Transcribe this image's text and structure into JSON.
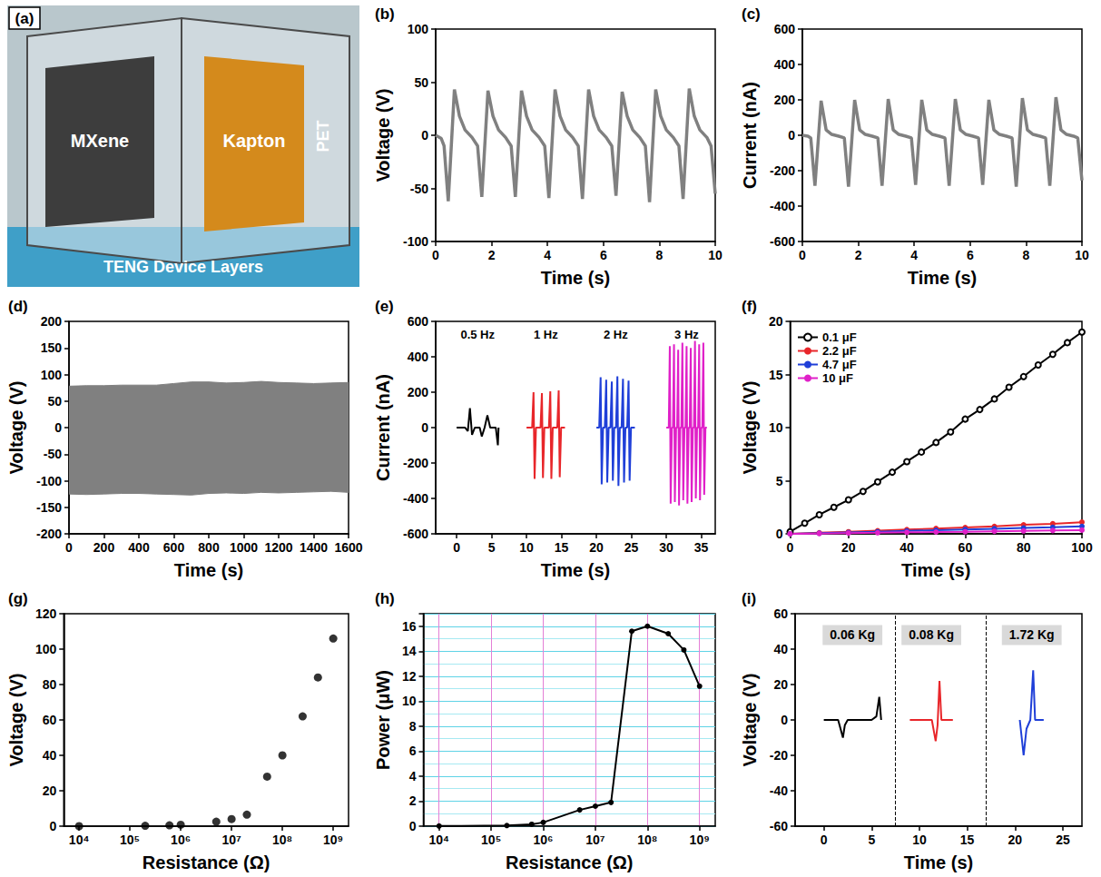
{
  "photo": {
    "label": "(a)",
    "layers": [
      "MXene",
      "Kapton",
      "PET"
    ],
    "caption": "TENG Device Layers"
  },
  "chart_data": [
    {
      "label": "(b)",
      "type": "line",
      "xlabel": "Time (s)",
      "ylabel": "Voltage (V)",
      "xlim": [
        0,
        10
      ],
      "xticks": [
        0,
        2,
        4,
        6,
        8,
        10
      ],
      "ylim": [
        -100,
        100
      ],
      "yticks": [
        -100,
        -50,
        0,
        50,
        100
      ],
      "x": [
        0,
        0.2,
        0.3,
        0.45,
        0.67,
        0.85,
        1.05,
        1.3,
        1.5,
        1.65,
        1.87,
        2.05,
        2.25,
        2.5,
        2.7,
        2.85,
        3.07,
        3.25,
        3.45,
        3.7,
        3.9,
        4.05,
        4.27,
        4.45,
        4.65,
        4.9,
        5.1,
        5.25,
        5.47,
        5.65,
        5.85,
        6.1,
        6.3,
        6.45,
        6.67,
        6.85,
        7.05,
        7.3,
        7.5,
        7.65,
        7.87,
        8.05,
        8.25,
        8.5,
        8.7,
        8.85,
        9.07,
        9.25,
        9.45,
        9.7,
        9.85,
        10
      ],
      "series": [
        {
          "color": "#808080",
          "values": [
            0,
            -3,
            -10,
            -62,
            43,
            18,
            5,
            -2,
            -10,
            -58,
            42,
            18,
            5,
            -2,
            -10,
            -58,
            42,
            18,
            5,
            -2,
            -10,
            -59,
            43,
            18,
            5,
            -2,
            -10,
            -60,
            43,
            18,
            5,
            -2,
            -10,
            -57,
            41,
            18,
            5,
            -2,
            -10,
            -63,
            43,
            18,
            5,
            -2,
            -10,
            -60,
            44,
            18,
            5,
            -2,
            -10,
            -55
          ]
        }
      ]
    },
    {
      "label": "(c)",
      "type": "line",
      "xlabel": "Time (s)",
      "ylabel": "Current (nA)",
      "xlim": [
        0,
        10
      ],
      "xticks": [
        0,
        2,
        4,
        6,
        8,
        10
      ],
      "ylim": [
        -600,
        600
      ],
      "yticks": [
        -600,
        -400,
        -200,
        0,
        200,
        400,
        600
      ],
      "x": [
        0,
        0.2,
        0.3,
        0.45,
        0.67,
        0.85,
        1.05,
        1.3,
        1.5,
        1.65,
        1.87,
        2.05,
        2.25,
        2.5,
        2.7,
        2.85,
        3.07,
        3.25,
        3.45,
        3.7,
        3.9,
        4.05,
        4.27,
        4.45,
        4.65,
        4.9,
        5.1,
        5.25,
        5.47,
        5.65,
        5.85,
        6.1,
        6.3,
        6.45,
        6.67,
        6.85,
        7.05,
        7.3,
        7.5,
        7.65,
        7.87,
        8.05,
        8.25,
        8.5,
        8.7,
        8.85,
        9.07,
        9.25,
        9.45,
        9.7,
        9.85,
        10
      ],
      "series": [
        {
          "color": "#808080",
          "values": [
            0,
            -5,
            -15,
            -285,
            195,
            30,
            5,
            -5,
            -15,
            -290,
            200,
            30,
            5,
            -5,
            -15,
            -285,
            205,
            30,
            5,
            -5,
            -15,
            -280,
            200,
            30,
            5,
            -5,
            -15,
            -285,
            205,
            30,
            5,
            -5,
            -15,
            -280,
            200,
            30,
            5,
            -5,
            -15,
            -290,
            210,
            30,
            5,
            -5,
            -15,
            -285,
            215,
            30,
            5,
            -5,
            -15,
            -255
          ]
        }
      ]
    },
    {
      "label": "(d)",
      "type": "area",
      "xlabel": "Time (s)",
      "ylabel": "Voltage (V)",
      "xlim": [
        0,
        1600
      ],
      "xticks": [
        0,
        200,
        400,
        600,
        800,
        1000,
        1200,
        1400,
        1600
      ],
      "ylim": [
        -200,
        200
      ],
      "yticks": [
        -200,
        -150,
        -100,
        -50,
        0,
        50,
        100,
        150,
        200
      ],
      "x": [
        0,
        100,
        200,
        300,
        400,
        500,
        600,
        700,
        800,
        900,
        1000,
        1100,
        1200,
        1300,
        1400,
        1500,
        1600
      ],
      "series": [
        {
          "color": "#808080",
          "values": [
            78,
            79,
            79,
            80,
            80,
            80,
            83,
            86,
            86,
            84,
            85,
            87,
            85,
            84,
            83,
            84,
            85
          ]
        },
        {
          "color": "#808080",
          "values": [
            -125,
            -126,
            -125,
            -124,
            -124,
            -125,
            -126,
            -127,
            -124,
            -123,
            -124,
            -122,
            -123,
            -122,
            -121,
            -120,
            -122
          ]
        }
      ]
    },
    {
      "label": "(e)",
      "type": "line",
      "xlabel": "Time (s)",
      "ylabel": "Current (nA)",
      "xlim": [
        -3,
        37
      ],
      "xticks": [
        0,
        5,
        10,
        15,
        20,
        25,
        30,
        35
      ],
      "ylim": [
        -600,
        600
      ],
      "yticks": [
        -600,
        -400,
        -200,
        0,
        200,
        400,
        600
      ],
      "series": [
        {
          "annotation": "0.5 Hz",
          "color": "#000000",
          "x": [
            0,
            1.2,
            1.6,
            1.9,
            2.2,
            2.6,
            3.3,
            3.6,
            4.0,
            4.4,
            4.8,
            5.6,
            5.9,
            6.0
          ],
          "values": [
            0,
            0,
            -20,
            110,
            -40,
            0,
            0,
            -50,
            0,
            70,
            0,
            0,
            -100,
            0
          ]
        },
        {
          "annotation": "1 Hz",
          "color": "#e8262a",
          "x": [
            10,
            10.8,
            11.0,
            11.15,
            11.35,
            12.0,
            12.2,
            12.35,
            12.55,
            13.2,
            13.4,
            13.55,
            13.75,
            14.4,
            14.6,
            14.75,
            14.95,
            15.5
          ],
          "values": [
            0,
            0,
            200,
            -290,
            0,
            0,
            195,
            -285,
            0,
            0,
            205,
            -290,
            0,
            0,
            210,
            -280,
            0,
            0
          ]
        },
        {
          "annotation": "2 Hz",
          "color": "#1f3fd8",
          "x": [
            20,
            20.4,
            20.6,
            20.75,
            20.95,
            21.2,
            21.4,
            21.55,
            21.75,
            22.0,
            22.2,
            22.35,
            22.55,
            22.8,
            23.0,
            23.15,
            23.35,
            23.6,
            23.8,
            23.95,
            24.15,
            24.4,
            24.6,
            24.75,
            24.95,
            25.5
          ],
          "values": [
            0,
            0,
            285,
            -320,
            0,
            0,
            270,
            -310,
            0,
            0,
            260,
            -300,
            0,
            0,
            290,
            -330,
            0,
            0,
            275,
            -310,
            0,
            0,
            265,
            -300,
            0,
            0
          ]
        },
        {
          "annotation": "3 Hz",
          "color": "#e020c8",
          "x": [
            30,
            30.35,
            30.5,
            30.62,
            30.8,
            30.95,
            31.1,
            31.22,
            31.4,
            31.55,
            31.7,
            31.82,
            32.0,
            32.15,
            32.3,
            32.42,
            32.6,
            32.75,
            32.9,
            33.02,
            33.2,
            33.35,
            33.5,
            33.62,
            33.8,
            33.95,
            34.1,
            34.22,
            34.4,
            34.55,
            34.7,
            34.82,
            35.0,
            35.15,
            35.3,
            35.42,
            35.6,
            35.8
          ],
          "values": [
            0,
            0,
            460,
            -430,
            0,
            0,
            470,
            -420,
            0,
            0,
            440,
            -440,
            0,
            0,
            480,
            -410,
            0,
            0,
            460,
            -430,
            0,
            0,
            450,
            -420,
            0,
            0,
            490,
            -400,
            0,
            0,
            470,
            -410,
            0,
            0,
            480,
            -380,
            0,
            0
          ]
        }
      ]
    },
    {
      "label": "(f)",
      "type": "line",
      "xlabel": "Time (s)",
      "ylabel": "Voltage (V)",
      "legend": "upper left",
      "xlim": [
        0,
        100
      ],
      "xticks": [
        0,
        20,
        40,
        60,
        80,
        100
      ],
      "ylim": [
        0,
        20
      ],
      "yticks": [
        0,
        5,
        10,
        15,
        20
      ],
      "series": [
        {
          "name": "0.1 μF",
          "color": "#000000",
          "marker": "open circle",
          "x": [
            0,
            5,
            10,
            15,
            20,
            25,
            30,
            35,
            40,
            45,
            50,
            55,
            60,
            65,
            70,
            75,
            80,
            85,
            90,
            95,
            100
          ],
          "values": [
            0.2,
            1.0,
            1.8,
            2.5,
            3.2,
            4.0,
            4.9,
            5.8,
            6.8,
            7.7,
            8.6,
            9.6,
            10.8,
            11.7,
            12.7,
            13.8,
            14.8,
            15.9,
            16.9,
            18.0,
            19.0
          ]
        },
        {
          "name": "2.2 μF",
          "color": "#e8262a",
          "marker": "circle",
          "x": [
            0,
            10,
            20,
            30,
            40,
            50,
            60,
            70,
            80,
            90,
            100
          ],
          "values": [
            0,
            0.1,
            0.2,
            0.3,
            0.4,
            0.5,
            0.6,
            0.7,
            0.85,
            0.95,
            1.1
          ]
        },
        {
          "name": "4.7 μF",
          "color": "#1f3fd8",
          "marker": "circle",
          "x": [
            0,
            10,
            20,
            30,
            40,
            50,
            60,
            70,
            80,
            90,
            100
          ],
          "values": [
            0,
            0.06,
            0.13,
            0.2,
            0.27,
            0.34,
            0.41,
            0.48,
            0.55,
            0.62,
            0.7
          ]
        },
        {
          "name": "10 μF",
          "color": "#e020c8",
          "marker": "circle",
          "x": [
            0,
            10,
            20,
            30,
            40,
            50,
            60,
            70,
            80,
            90,
            100
          ],
          "values": [
            0,
            0.03,
            0.07,
            0.1,
            0.14,
            0.17,
            0.2,
            0.24,
            0.27,
            0.31,
            0.35
          ]
        }
      ]
    },
    {
      "label": "(g)",
      "type": "scatter",
      "log": "x",
      "marker": "circle",
      "xlabel": "Resistance (Ω)",
      "ylabel": "Voltage (V)",
      "xlim": [
        5000,
        2000000000
      ],
      "xticks": [
        {
          "value": 10000,
          "label": "10⁴"
        },
        {
          "value": 100000,
          "label": "10⁵"
        },
        {
          "value": 1000000,
          "label": "10⁶"
        },
        {
          "value": 10000000,
          "label": "10⁷"
        },
        {
          "value": 100000000,
          "label": "10⁸"
        },
        {
          "value": 1000000000,
          "label": "10⁹"
        }
      ],
      "ylim": [
        0,
        120
      ],
      "yticks": [
        0,
        20,
        40,
        60,
        80,
        100,
        120
      ],
      "x": [
        10000,
        200000,
        600000,
        1000000,
        5000000,
        10000000,
        20000000,
        50000000,
        100000000,
        250000000,
        500000000,
        1000000000
      ],
      "series": [
        {
          "color": "#000000",
          "values": [
            0,
            0.2,
            0.5,
            0.8,
            2.5,
            4,
            6.5,
            28,
            40,
            62,
            84,
            106
          ]
        }
      ]
    },
    {
      "label": "(h)",
      "type": "line",
      "log": "x",
      "grid": true,
      "marker": "circle",
      "xlabel": "Resistance (Ω)",
      "ylabel": "Power (μW)",
      "xlim": [
        5000,
        2000000000
      ],
      "xticks": [
        {
          "value": 10000,
          "label": "10⁴"
        },
        {
          "value": 100000,
          "label": "10⁵"
        },
        {
          "value": 1000000,
          "label": "10⁶"
        },
        {
          "value": 10000000,
          "label": "10⁷"
        },
        {
          "value": 100000000,
          "label": "10⁸"
        },
        {
          "value": 1000000000,
          "label": "10⁹"
        }
      ],
      "ylim": [
        0,
        17
      ],
      "yticks": [
        0,
        2,
        4,
        6,
        8,
        10,
        12,
        14,
        16
      ],
      "x": [
        10000,
        200000,
        600000,
        1000000,
        5000000,
        10000000,
        20000000,
        50000000,
        100000000,
        250000000,
        500000000,
        1000000000
      ],
      "series": [
        {
          "color": "#000000",
          "values": [
            0.01,
            0.05,
            0.15,
            0.3,
            1.3,
            1.6,
            1.9,
            15.6,
            16,
            15.4,
            14.1,
            11.2
          ]
        }
      ]
    },
    {
      "label": "(i)",
      "type": "line",
      "xlabel": "Time (s)",
      "ylabel": "Voltage (V)",
      "xlim": [
        -3,
        27
      ],
      "xticks": [
        0,
        5,
        10,
        15,
        20,
        25
      ],
      "ylim": [
        -60,
        60
      ],
      "yticks": [
        -60,
        -40,
        -20,
        0,
        20,
        40,
        60
      ],
      "series": [
        {
          "annotation": "0.06 Kg",
          "color": "#000000",
          "x": [
            0,
            1.5,
            2.0,
            2.2,
            2.5,
            5.0,
            5.5,
            5.8,
            6.0
          ],
          "values": [
            0,
            0,
            -10,
            -3,
            0,
            0,
            2,
            13,
            0
          ]
        },
        {
          "annotation": "0.08 Kg",
          "color": "#e8262a",
          "x": [
            9,
            11.3,
            11.7,
            11.9,
            12.1,
            12.3,
            13.5
          ],
          "values": [
            0,
            0,
            -12,
            -3,
            22,
            0,
            0
          ]
        },
        {
          "annotation": "1.72 Kg",
          "color": "#1f3fd8",
          "x": [
            20.5,
            20.9,
            21.2,
            21.6,
            21.9,
            22.1,
            23
          ],
          "values": [
            0,
            -20,
            -5,
            0,
            28,
            0,
            0
          ]
        }
      ]
    }
  ]
}
